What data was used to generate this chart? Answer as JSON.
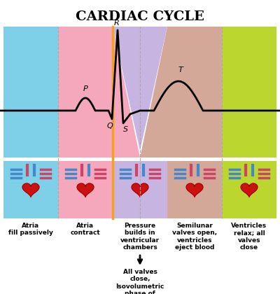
{
  "title": "CARDIAC CYCLE",
  "title_fontsize": 14,
  "bg_color": "#ffffff",
  "panel_colors": [
    "#7ecfe8",
    "#f5a8bc",
    "#c8b4e0",
    "#d4a898",
    "#bcd630"
  ],
  "panel_labels": [
    "Atria\nfill passively",
    "Atria\ncontract",
    "Pressure\nbuilds in\nventricular\nchambers",
    "Semilunar\nvalves open,\nventricles\neject blood",
    "Ventricles\nrelax; all\nvalves\nclose"
  ],
  "arrow_label": "All valves\nclose,\nIsovolumetric\nphase of\ncontraction",
  "ecg_color": "#000000",
  "orange_line_color": "#f5a020",
  "dashed_line_color": "#aaaaaa"
}
